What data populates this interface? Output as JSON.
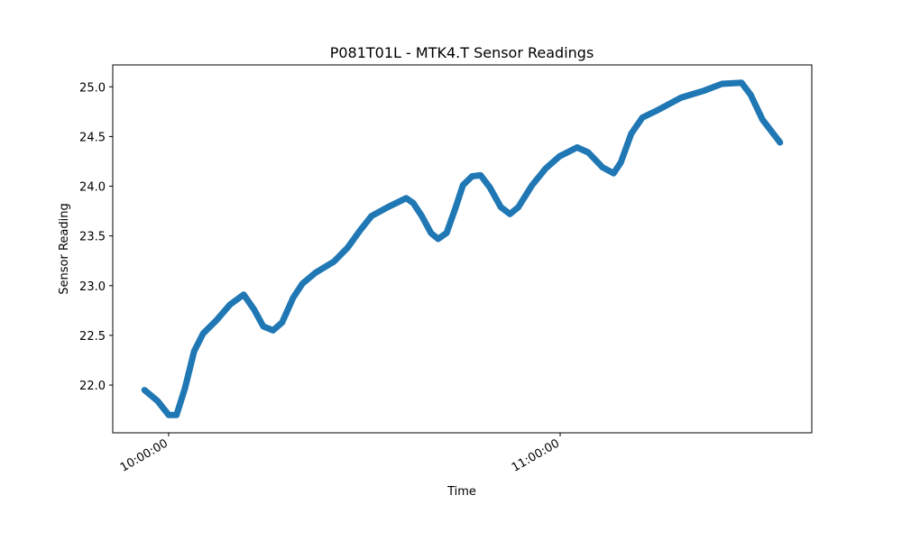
{
  "chart_data": {
    "type": "line",
    "title": "P081T01L - MTK4.T Sensor Readings",
    "x_label": "Time",
    "y_label": "Sensor Reading",
    "x": [
      "09:56:18",
      "09:58:18",
      "10:00:00",
      "10:01:12",
      "10:02:30",
      "10:03:54",
      "10:05:18",
      "10:07:18",
      "10:09:24",
      "10:11:30",
      "10:13:06",
      "10:14:30",
      "10:16:00",
      "10:17:24",
      "10:19:06",
      "10:20:30",
      "10:22:30",
      "10:25:18",
      "10:27:24",
      "10:29:24",
      "10:31:06",
      "10:33:36",
      "10:36:24",
      "10:37:30",
      "10:38:48",
      "10:40:12",
      "10:41:18",
      "10:42:36",
      "10:44:00",
      "10:45:06",
      "10:46:30",
      "10:47:48",
      "10:49:12",
      "10:50:54",
      "10:52:18",
      "10:53:36",
      "10:55:42",
      "10:57:48",
      "10:59:54",
      "11:02:36",
      "11:04:18",
      "11:06:30",
      "11:08:12",
      "11:09:18",
      "11:10:54",
      "11:12:36",
      "11:15:06",
      "11:18:30",
      "11:22:00",
      "11:24:48",
      "11:27:48",
      "11:29:12",
      "11:31:00",
      "11:33:42"
    ],
    "series": [
      {
        "name": "MTK4.T",
        "color": "#1f77b4",
        "values": [
          21.95,
          21.84,
          21.7,
          21.7,
          21.97,
          22.34,
          22.52,
          22.65,
          22.81,
          22.91,
          22.76,
          22.59,
          22.55,
          22.63,
          22.88,
          23.02,
          23.13,
          23.24,
          23.38,
          23.56,
          23.7,
          23.79,
          23.88,
          23.83,
          23.7,
          23.53,
          23.47,
          23.53,
          23.79,
          24.01,
          24.1,
          24.11,
          23.99,
          23.79,
          23.72,
          23.79,
          24.01,
          24.18,
          24.3,
          24.39,
          24.34,
          24.19,
          24.13,
          24.24,
          24.53,
          24.69,
          24.77,
          24.89,
          24.96,
          25.03,
          25.04,
          24.92,
          24.67,
          24.44
        ]
      }
    ],
    "xlim": [
      "09:51:26",
      "11:38:34"
    ],
    "xticks": [
      "10:00:00",
      "11:00:00"
    ],
    "ylim": [
      21.52,
      25.22
    ],
    "yticks": [
      {
        "value": 22,
        "label": "22.0"
      },
      {
        "value": 22.5,
        "label": "22.5"
      },
      {
        "value": 23,
        "label": "23.0"
      },
      {
        "value": 23.5,
        "label": "23.5"
      },
      {
        "value": 24,
        "label": "24.0"
      },
      {
        "value": 24.5,
        "label": "24.5"
      },
      {
        "value": 25,
        "label": "25.0"
      }
    ],
    "grid": false
  }
}
